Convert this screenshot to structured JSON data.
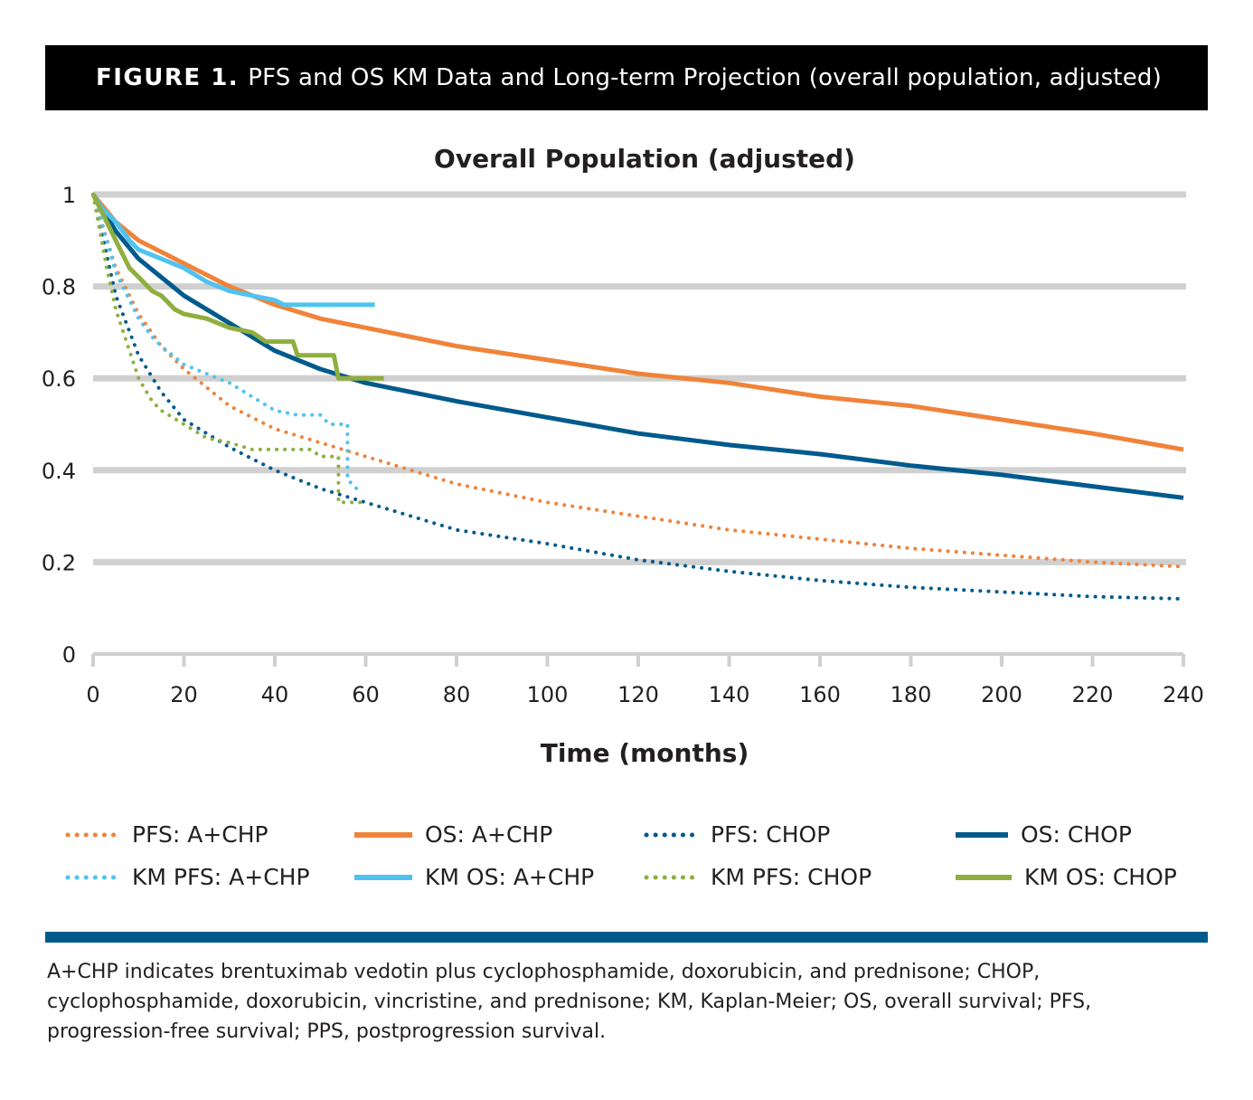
{
  "header": {
    "label": "FIGURE 1.",
    "title": "PFS and OS KM Data and Long-term Projection (overall population, adjusted)"
  },
  "chart_data": {
    "type": "line",
    "title": "Overall Population (adjusted)",
    "xlabel": "Time (months)",
    "ylabel": "",
    "xlim": [
      0,
      240
    ],
    "ylim": [
      0,
      1
    ],
    "xticks": [
      0,
      20,
      40,
      60,
      80,
      100,
      120,
      140,
      160,
      180,
      200,
      220,
      240
    ],
    "yticks": [
      0,
      0.2,
      0.4,
      0.6,
      0.8,
      1
    ],
    "ytick_labels": [
      "0",
      "0.2",
      "0.4",
      "0.6",
      "0.8",
      "1"
    ],
    "grid": true,
    "legend_position": "bottom",
    "series": [
      {
        "name": "PFS: A+CHP",
        "style": "dotted",
        "color": "#f0833a",
        "points": [
          [
            0,
            1
          ],
          [
            5,
            0.84
          ],
          [
            10,
            0.74
          ],
          [
            15,
            0.67
          ],
          [
            20,
            0.62
          ],
          [
            30,
            0.54
          ],
          [
            40,
            0.49
          ],
          [
            50,
            0.46
          ],
          [
            60,
            0.43
          ],
          [
            70,
            0.4
          ],
          [
            80,
            0.37
          ],
          [
            100,
            0.33
          ],
          [
            120,
            0.3
          ],
          [
            140,
            0.27
          ],
          [
            160,
            0.25
          ],
          [
            180,
            0.23
          ],
          [
            200,
            0.215
          ],
          [
            220,
            0.2
          ],
          [
            240,
            0.19
          ]
        ]
      },
      {
        "name": "OS: A+CHP",
        "style": "solid",
        "color": "#f0833a",
        "points": [
          [
            0,
            1
          ],
          [
            5,
            0.94
          ],
          [
            10,
            0.9
          ],
          [
            20,
            0.85
          ],
          [
            30,
            0.8
          ],
          [
            40,
            0.76
          ],
          [
            50,
            0.73
          ],
          [
            60,
            0.71
          ],
          [
            80,
            0.67
          ],
          [
            100,
            0.64
          ],
          [
            120,
            0.61
          ],
          [
            140,
            0.59
          ],
          [
            160,
            0.56
          ],
          [
            180,
            0.54
          ],
          [
            200,
            0.51
          ],
          [
            220,
            0.48
          ],
          [
            240,
            0.445
          ]
        ]
      },
      {
        "name": "PFS: CHOP",
        "style": "dotted",
        "color": "#005a8c",
        "points": [
          [
            0,
            1
          ],
          [
            5,
            0.78
          ],
          [
            10,
            0.65
          ],
          [
            15,
            0.57
          ],
          [
            20,
            0.51
          ],
          [
            30,
            0.45
          ],
          [
            40,
            0.4
          ],
          [
            50,
            0.36
          ],
          [
            60,
            0.33
          ],
          [
            80,
            0.27
          ],
          [
            100,
            0.24
          ],
          [
            120,
            0.205
          ],
          [
            140,
            0.18
          ],
          [
            160,
            0.16
          ],
          [
            180,
            0.145
          ],
          [
            200,
            0.135
          ],
          [
            220,
            0.125
          ],
          [
            240,
            0.12
          ]
        ]
      },
      {
        "name": "OS: CHOP",
        "style": "solid",
        "color": "#005a8c",
        "points": [
          [
            0,
            1
          ],
          [
            5,
            0.92
          ],
          [
            10,
            0.86
          ],
          [
            20,
            0.78
          ],
          [
            30,
            0.72
          ],
          [
            40,
            0.66
          ],
          [
            50,
            0.62
          ],
          [
            60,
            0.59
          ],
          [
            80,
            0.55
          ],
          [
            100,
            0.515
          ],
          [
            120,
            0.48
          ],
          [
            140,
            0.455
          ],
          [
            160,
            0.435
          ],
          [
            180,
            0.41
          ],
          [
            200,
            0.39
          ],
          [
            220,
            0.365
          ],
          [
            240,
            0.34
          ]
        ]
      },
      {
        "name": "KM PFS: A+CHP",
        "style": "dotted",
        "color": "#4fc3f0",
        "points": [
          [
            0,
            1
          ],
          [
            3,
            0.9
          ],
          [
            5,
            0.83
          ],
          [
            8,
            0.77
          ],
          [
            10,
            0.73
          ],
          [
            13,
            0.69
          ],
          [
            15,
            0.67
          ],
          [
            20,
            0.63
          ],
          [
            25,
            0.61
          ],
          [
            30,
            0.59
          ],
          [
            35,
            0.56
          ],
          [
            40,
            0.53
          ],
          [
            45,
            0.52
          ],
          [
            50,
            0.52
          ],
          [
            52,
            0.5
          ],
          [
            55,
            0.5
          ],
          [
            56,
            0.5
          ],
          [
            56,
            0.38
          ],
          [
            58,
            0.36
          ]
        ]
      },
      {
        "name": "KM OS: A+CHP",
        "style": "solid",
        "color": "#4fc3f0",
        "points": [
          [
            0,
            1
          ],
          [
            2,
            0.97
          ],
          [
            5,
            0.94
          ],
          [
            8,
            0.9
          ],
          [
            10,
            0.88
          ],
          [
            15,
            0.86
          ],
          [
            20,
            0.84
          ],
          [
            25,
            0.81
          ],
          [
            30,
            0.79
          ],
          [
            35,
            0.78
          ],
          [
            40,
            0.77
          ],
          [
            42,
            0.76
          ],
          [
            50,
            0.76
          ],
          [
            62,
            0.76
          ]
        ]
      },
      {
        "name": "KM PFS: CHOP",
        "style": "dotted",
        "color": "#8fae3f",
        "points": [
          [
            0,
            1
          ],
          [
            3,
            0.84
          ],
          [
            5,
            0.75
          ],
          [
            8,
            0.66
          ],
          [
            10,
            0.6
          ],
          [
            13,
            0.55
          ],
          [
            15,
            0.53
          ],
          [
            20,
            0.5
          ],
          [
            25,
            0.47
          ],
          [
            30,
            0.46
          ],
          [
            35,
            0.445
          ],
          [
            40,
            0.445
          ],
          [
            45,
            0.445
          ],
          [
            48,
            0.445
          ],
          [
            50,
            0.43
          ],
          [
            54,
            0.43
          ],
          [
            54,
            0.33
          ],
          [
            60,
            0.33
          ]
        ]
      },
      {
        "name": "KM OS: CHOP",
        "style": "solid",
        "color": "#8fae3f",
        "points": [
          [
            0,
            1
          ],
          [
            3,
            0.94
          ],
          [
            5,
            0.9
          ],
          [
            8,
            0.84
          ],
          [
            10,
            0.82
          ],
          [
            13,
            0.79
          ],
          [
            15,
            0.78
          ],
          [
            18,
            0.75
          ],
          [
            20,
            0.74
          ],
          [
            25,
            0.73
          ],
          [
            30,
            0.71
          ],
          [
            35,
            0.7
          ],
          [
            38,
            0.68
          ],
          [
            44,
            0.68
          ],
          [
            45,
            0.65
          ],
          [
            53,
            0.65
          ],
          [
            54,
            0.6
          ],
          [
            64,
            0.6
          ]
        ]
      }
    ]
  },
  "legend": {
    "items": [
      {
        "label": "PFS: A+CHP",
        "style": "dotted",
        "color": "#f0833a"
      },
      {
        "label": "OS: A+CHP",
        "style": "solid",
        "color": "#f0833a"
      },
      {
        "label": "PFS: CHOP",
        "style": "dotted",
        "color": "#005a8c"
      },
      {
        "label": "OS: CHOP",
        "style": "solid",
        "color": "#005a8c"
      },
      {
        "label": "KM PFS: A+CHP",
        "style": "dotted",
        "color": "#4fc3f0"
      },
      {
        "label": "KM OS: A+CHP",
        "style": "solid",
        "color": "#4fc3f0"
      },
      {
        "label": "KM PFS: CHOP",
        "style": "dotted",
        "color": "#8fae3f"
      },
      {
        "label": "KM OS: CHOP",
        "style": "solid",
        "color": "#8fae3f"
      }
    ]
  },
  "footnote": "A+CHP indicates brentuximab vedotin plus cyclophosphamide, doxorubicin, and prednisone; CHOP, cyclophosphamide, doxorubicin, vincristine, and prednisone; KM, Kaplan-Meier; OS, overall survival; PFS, progression-free survival; PPS, postprogression survival."
}
